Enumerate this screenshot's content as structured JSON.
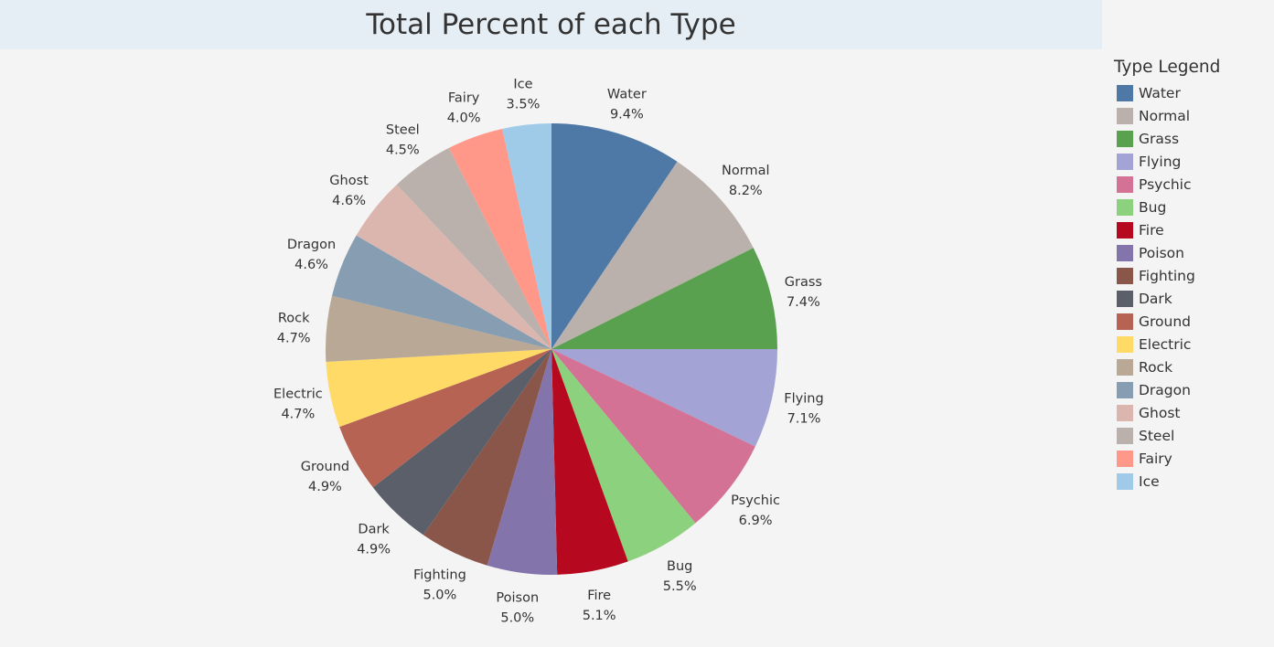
{
  "chart_data": {
    "type": "pie",
    "title": "Total Percent of each Type",
    "legend_title": "Type Legend",
    "legend_placement": "right",
    "slices": [
      {
        "label": "Water",
        "value": 9.4,
        "display": "9.4%",
        "color": "#4e79a7"
      },
      {
        "label": "Normal",
        "value": 8.2,
        "display": "8.2%",
        "color": "#bab0ac"
      },
      {
        "label": "Grass",
        "value": 7.4,
        "display": "7.4%",
        "color": "#59a14f"
      },
      {
        "label": "Flying",
        "value": 7.1,
        "display": "7.1%",
        "color": "#a3a3d5"
      },
      {
        "label": "Psychic",
        "value": 6.9,
        "display": "6.9%",
        "color": "#d37295"
      },
      {
        "label": "Bug",
        "value": 5.5,
        "display": "5.5%",
        "color": "#8cd17d"
      },
      {
        "label": "Fire",
        "value": 5.1,
        "display": "5.1%",
        "color": "#b6081e"
      },
      {
        "label": "Poison",
        "value": 5.0,
        "display": "5.0%",
        "color": "#8374ab"
      },
      {
        "label": "Fighting",
        "value": 5.0,
        "display": "5.0%",
        "color": "#8a564a"
      },
      {
        "label": "Dark",
        "value": 4.9,
        "display": "4.9%",
        "color": "#5b5f69"
      },
      {
        "label": "Ground",
        "value": 4.9,
        "display": "4.9%",
        "color": "#b66353"
      },
      {
        "label": "Electric",
        "value": 4.7,
        "display": "4.7%",
        "color": "#ffda66"
      },
      {
        "label": "Rock",
        "value": 4.7,
        "display": "4.7%",
        "color": "#b9a896"
      },
      {
        "label": "Dragon",
        "value": 4.6,
        "display": "4.6%",
        "color": "#879db1"
      },
      {
        "label": "Ghost",
        "value": 4.6,
        "display": "4.6%",
        "color": "#dbb6ae"
      },
      {
        "label": "Steel",
        "value": 4.5,
        "display": "4.5%",
        "color": "#bab0ac"
      },
      {
        "label": "Fairy",
        "value": 4.0,
        "display": "4.0%",
        "color": "#ff9888"
      },
      {
        "label": "Ice",
        "value": 3.5,
        "display": "3.5%",
        "color": "#a0cbe8"
      }
    ]
  }
}
